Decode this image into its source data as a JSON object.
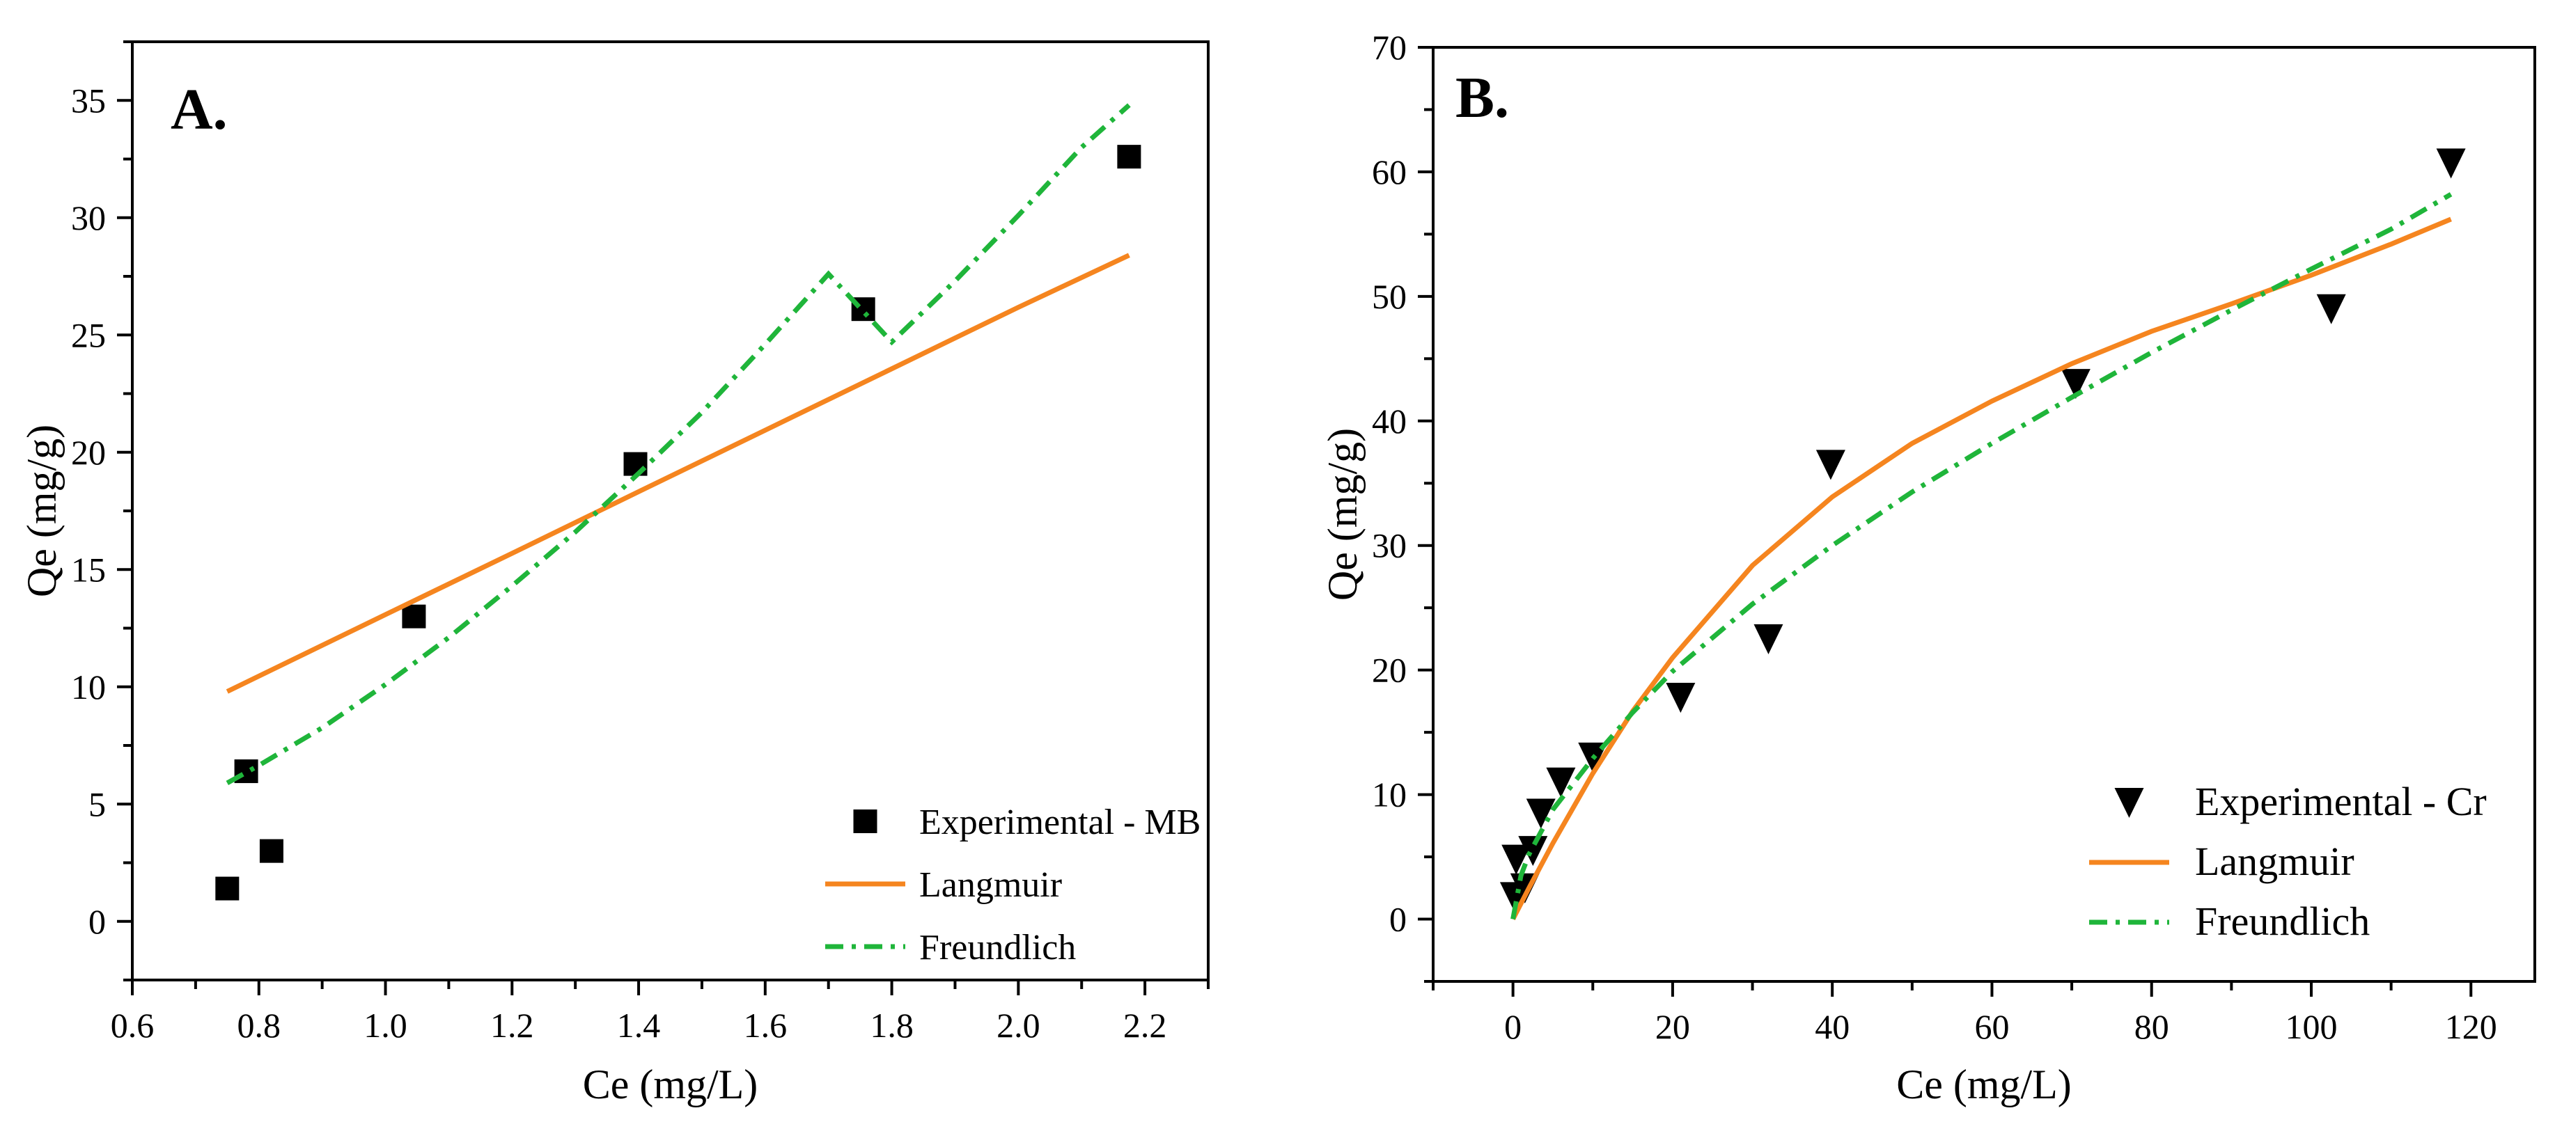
{
  "chart_data": [
    {
      "type": "scatter",
      "panel_label": "A.",
      "xlabel": "Ce (mg/L)",
      "ylabel": "Qe (mg/g)",
      "xlim": [
        0.6,
        2.3
      ],
      "ylim": [
        -2.5,
        37.5
      ],
      "xticks": [
        0.6,
        0.8,
        1.0,
        1.2,
        1.4,
        1.6,
        1.8,
        2.0,
        2.2
      ],
      "xtick_labels": [
        "0.6",
        "0.8",
        "1.0",
        "1.2",
        "1.4",
        "1.6",
        "1.8",
        "2.0",
        "2.2"
      ],
      "yticks": [
        0,
        5,
        10,
        15,
        20,
        25,
        30,
        35
      ],
      "ytick_labels": [
        "0",
        "5",
        "10",
        "15",
        "20",
        "25",
        "30",
        "35"
      ],
      "legend_position": "bottom-right",
      "series": [
        {
          "name": "Experimental - MB",
          "kind": "markers",
          "marker": "square",
          "color": "#000000",
          "x": [
            0.75,
            0.78,
            0.82,
            1.045,
            1.395,
            1.755,
            2.175
          ],
          "y": [
            1.4,
            6.4,
            3.0,
            13.0,
            19.5,
            26.1,
            32.6
          ]
        },
        {
          "name": "Langmuir",
          "kind": "line",
          "style": "solid",
          "color": "#F5851F",
          "x": [
            0.75,
            1.0,
            1.2,
            1.4,
            1.6,
            1.8,
            2.0,
            2.175
          ],
          "y": [
            9.8,
            13.08,
            15.69,
            18.32,
            20.94,
            23.56,
            26.18,
            28.4
          ]
        },
        {
          "name": "Freundlich",
          "kind": "line",
          "style": "dashdot",
          "color": "#1FB53A",
          "x": [
            0.75,
            0.8,
            0.9,
            1.0,
            1.1,
            1.2,
            1.3,
            1.4,
            1.5,
            1.6,
            1.7,
            1.8,
            1.9,
            2.0,
            2.1,
            2.175
          ],
          "y": [
            5.9,
            6.65,
            8.25,
            10.1,
            12.1,
            14.3,
            16.6,
            19.1,
            21.7,
            24.6,
            27.6,
            24.7,
            27.3,
            30.1,
            33.0,
            34.8
          ]
        }
      ]
    },
    {
      "type": "scatter",
      "panel_label": "B.",
      "xlabel": "Ce (mg/L)",
      "ylabel": "Qe (mg/g)",
      "xlim": [
        -10,
        128
      ],
      "ylim": [
        -5,
        70
      ],
      "xticks": [
        0,
        20,
        40,
        60,
        80,
        100,
        120
      ],
      "xtick_labels": [
        "0",
        "20",
        "40",
        "60",
        "80",
        "100",
        "120"
      ],
      "yticks": [
        0,
        10,
        20,
        30,
        40,
        50,
        60,
        70
      ],
      "ytick_labels": [
        "0",
        "10",
        "20",
        "30",
        "40",
        "50",
        "60",
        "70"
      ],
      "legend_position": "bottom-right",
      "series": [
        {
          "name": "Experimental - Cr",
          "kind": "markers",
          "marker": "triangle-down",
          "color": "#000000",
          "x": [
            0.2,
            0.4,
            1.5,
            2.5,
            3.5,
            6.0,
            10.0,
            21.0,
            32.0,
            39.8,
            70.5,
            102.5,
            117.5
          ],
          "y": [
            1.8,
            4.8,
            2.5,
            5.5,
            8.5,
            11.0,
            13.0,
            17.8,
            22.5,
            36.5,
            43.0,
            49.0,
            60.7
          ]
        },
        {
          "name": "Langmuir",
          "kind": "line",
          "style": "solid",
          "color": "#F5851F",
          "x": [
            0,
            2,
            5,
            10,
            15,
            20,
            30,
            40,
            50,
            60,
            70,
            80,
            90,
            100,
            110,
            117.5
          ],
          "y": [
            0,
            2.5,
            6.1,
            11.7,
            16.7,
            21.0,
            28.4,
            33.9,
            38.2,
            41.6,
            44.6,
            47.2,
            49.4,
            51.7,
            54.2,
            56.2
          ]
        },
        {
          "name": "Freundlich",
          "kind": "line",
          "style": "dashdot",
          "color": "#1FB53A",
          "x": [
            0,
            1,
            2,
            5,
            10,
            15,
            20,
            30,
            40,
            50,
            60,
            70,
            80,
            90,
            100,
            110,
            117.5
          ],
          "y": [
            0,
            3.5,
            5.2,
            8.8,
            12.9,
            16.6,
            19.9,
            25.3,
            30.0,
            34.3,
            38.2,
            41.9,
            45.5,
            48.9,
            52.2,
            55.4,
            58.2
          ]
        }
      ]
    }
  ]
}
